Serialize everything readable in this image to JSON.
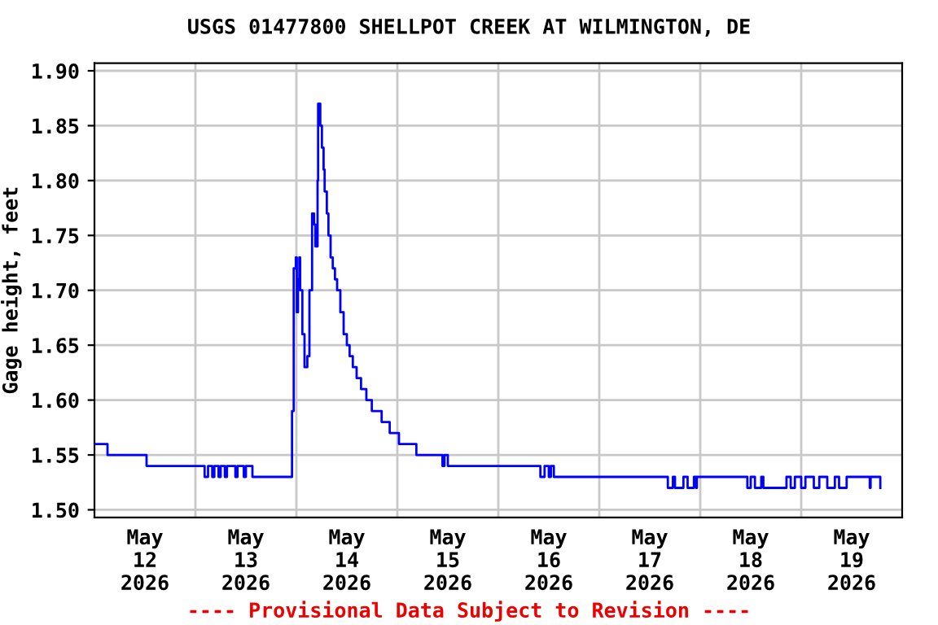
{
  "chart_data": {
    "type": "step",
    "title": "USGS 01477800 SHELLPOT CREEK AT WILMINGTON, DE",
    "ylabel": "Gage height, feet",
    "annotations": [
      "---- Provisional Data Subject to Revision ----"
    ],
    "series": [
      {
        "color": "#0000ff",
        "x": [
          "2026-05-12T00:00",
          "2026-05-12T03:06",
          "2026-05-12T12:23",
          "2026-05-13T02:11",
          "2026-05-13T03:00",
          "2026-05-13T04:00",
          "2026-05-13T04:30",
          "2026-05-13T05:30",
          "2026-05-13T06:00",
          "2026-05-13T07:00",
          "2026-05-13T07:30",
          "2026-05-13T09:30",
          "2026-05-13T10:00",
          "2026-05-13T11:30",
          "2026-05-13T12:00",
          "2026-05-13T13:33",
          "2026-05-13T22:58",
          "2026-05-13T23:22",
          "2026-05-13T23:52",
          "2026-05-14T00:06",
          "2026-05-14T00:23",
          "2026-05-14T00:42",
          "2026-05-14T00:54",
          "2026-05-14T01:25",
          "2026-05-14T01:56",
          "2026-05-14T02:36",
          "2026-05-14T03:06",
          "2026-05-14T03:44",
          "2026-05-14T04:12",
          "2026-05-14T04:31",
          "2026-05-14T05:02",
          "2026-05-14T05:10",
          "2026-05-14T05:41",
          "2026-05-14T06:04",
          "2026-05-14T06:28",
          "2026-05-14T06:43",
          "2026-05-14T07:14",
          "2026-05-14T07:37",
          "2026-05-14T08:08",
          "2026-05-14T08:39",
          "2026-05-14T09:10",
          "2026-05-14T09:41",
          "2026-05-14T10:27",
          "2026-05-14T11:14",
          "2026-05-14T12:00",
          "2026-05-14T12:39",
          "2026-05-14T13:25",
          "2026-05-14T14:19",
          "2026-05-14T15:22",
          "2026-05-14T16:38",
          "2026-05-14T17:56",
          "2026-05-14T20:16",
          "2026-05-14T22:11",
          "2026-05-15T00:23",
          "2026-05-15T04:31",
          "2026-05-15T10:43",
          "2026-05-15T11:12",
          "2026-05-15T12:00",
          "2026-05-16T10:00",
          "2026-05-16T11:00",
          "2026-05-16T12:00",
          "2026-05-16T12:30",
          "2026-05-16T13:12",
          "2026-05-17T16:18",
          "2026-05-17T17:30",
          "2026-05-17T18:00",
          "2026-05-17T20:00",
          "2026-05-17T21:00",
          "2026-05-17T22:30",
          "2026-05-17T23:00",
          "2026-05-17T23:12",
          "2026-05-18T11:12",
          "2026-05-18T12:00",
          "2026-05-18T13:00",
          "2026-05-18T14:30",
          "2026-05-18T15:00",
          "2026-05-18T20:30",
          "2026-05-18T21:30",
          "2026-05-18T22:30",
          "2026-05-19T00:00",
          "2026-05-19T01:00",
          "2026-05-19T03:00",
          "2026-05-19T04:18",
          "2026-05-19T06:12",
          "2026-05-19T08:00",
          "2026-05-19T09:00",
          "2026-05-19T10:48",
          "2026-05-19T16:18",
          "2026-05-19T16:30",
          "2026-05-19T18:48"
        ],
        "values": [
          1.56,
          1.55,
          1.54,
          1.53,
          1.54,
          1.53,
          1.54,
          1.53,
          1.54,
          1.53,
          1.54,
          1.53,
          1.54,
          1.53,
          1.54,
          1.53,
          1.59,
          1.72,
          1.73,
          1.68,
          1.71,
          1.73,
          1.7,
          1.66,
          1.63,
          1.64,
          1.7,
          1.77,
          1.76,
          1.74,
          1.8,
          1.87,
          1.85,
          1.83,
          1.81,
          1.79,
          1.77,
          1.75,
          1.73,
          1.72,
          1.71,
          1.7,
          1.68,
          1.66,
          1.65,
          1.64,
          1.63,
          1.62,
          1.61,
          1.6,
          1.59,
          1.58,
          1.57,
          1.56,
          1.55,
          1.54,
          1.55,
          1.54,
          1.53,
          1.54,
          1.53,
          1.54,
          1.53,
          1.52,
          1.53,
          1.52,
          1.53,
          1.52,
          1.53,
          1.52,
          1.53,
          1.52,
          1.53,
          1.52,
          1.53,
          1.52,
          1.53,
          1.52,
          1.53,
          1.52,
          1.53,
          1.52,
          1.53,
          1.52,
          1.53,
          1.52,
          1.53,
          1.52,
          1.53,
          1.52
        ]
      }
    ],
    "xlim": [
      "2026-05-12T00:00",
      "2026-05-20T00:00"
    ],
    "xticks": [
      {
        "value": "2026-05-12T12:00",
        "label": "May\n12\n2026"
      },
      {
        "value": "2026-05-13T00:00",
        "label": null
      },
      {
        "value": "2026-05-13T12:00",
        "label": "May\n13\n2026"
      },
      {
        "value": "2026-05-14T00:00",
        "label": null
      },
      {
        "value": "2026-05-14T12:00",
        "label": "May\n14\n2026"
      },
      {
        "value": "2026-05-15T00:00",
        "label": null
      },
      {
        "value": "2026-05-15T12:00",
        "label": "May\n15\n2026"
      },
      {
        "value": "2026-05-16T00:00",
        "label": null
      },
      {
        "value": "2026-05-16T12:00",
        "label": "May\n16\n2026"
      },
      {
        "value": "2026-05-17T00:00",
        "label": null
      },
      {
        "value": "2026-05-17T12:00",
        "label": "May\n17\n2026"
      },
      {
        "value": "2026-05-18T00:00",
        "label": null
      },
      {
        "value": "2026-05-18T12:00",
        "label": "May\n18\n2026"
      },
      {
        "value": "2026-05-19T00:00",
        "label": null
      },
      {
        "value": "2026-05-19T12:00",
        "label": "May\n19\n2026"
      }
    ],
    "ylim": [
      1.493,
      1.907
    ],
    "yticks": [
      {
        "value": 1.5,
        "label": "1.50"
      },
      {
        "value": 1.55,
        "label": "1.55"
      },
      {
        "value": 1.6,
        "label": "1.60"
      },
      {
        "value": 1.65,
        "label": "1.65"
      },
      {
        "value": 1.7,
        "label": "1.70"
      },
      {
        "value": 1.75,
        "label": "1.75"
      },
      {
        "value": 1.8,
        "label": "1.80"
      },
      {
        "value": 1.85,
        "label": "1.85"
      },
      {
        "value": 1.9,
        "label": "1.90"
      }
    ],
    "grid": true
  }
}
